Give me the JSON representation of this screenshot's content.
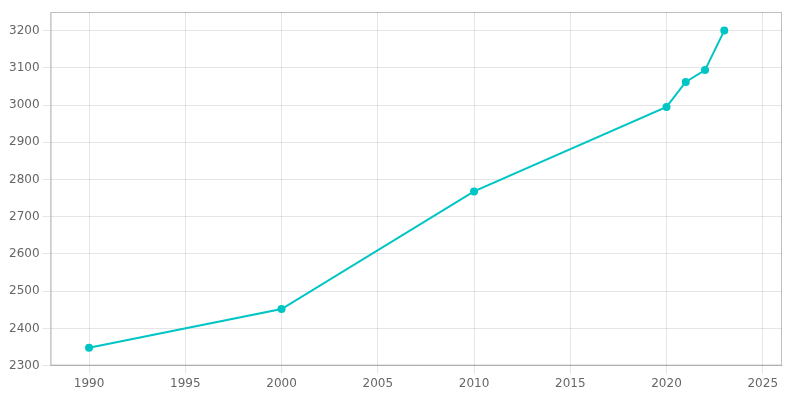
{
  "chart_data": {
    "type": "line",
    "x": [
      1990,
      2000,
      2010,
      2020,
      2021,
      2022,
      2023
    ],
    "values": [
      2348,
      2452,
      2768,
      2995,
      3062,
      3094,
      3200
    ],
    "color": "#00C5C5",
    "marker": "circle",
    "xlim": [
      1988,
      2026
    ],
    "xticks": [
      1990,
      1995,
      2000,
      2005,
      2010,
      2015,
      2020,
      2025
    ],
    "ylim": [
      2300,
      3250
    ],
    "yticks": [
      2300,
      2400,
      2500,
      2600,
      2700,
      2800,
      2900,
      3000,
      3100,
      3200
    ],
    "grid": true
  }
}
